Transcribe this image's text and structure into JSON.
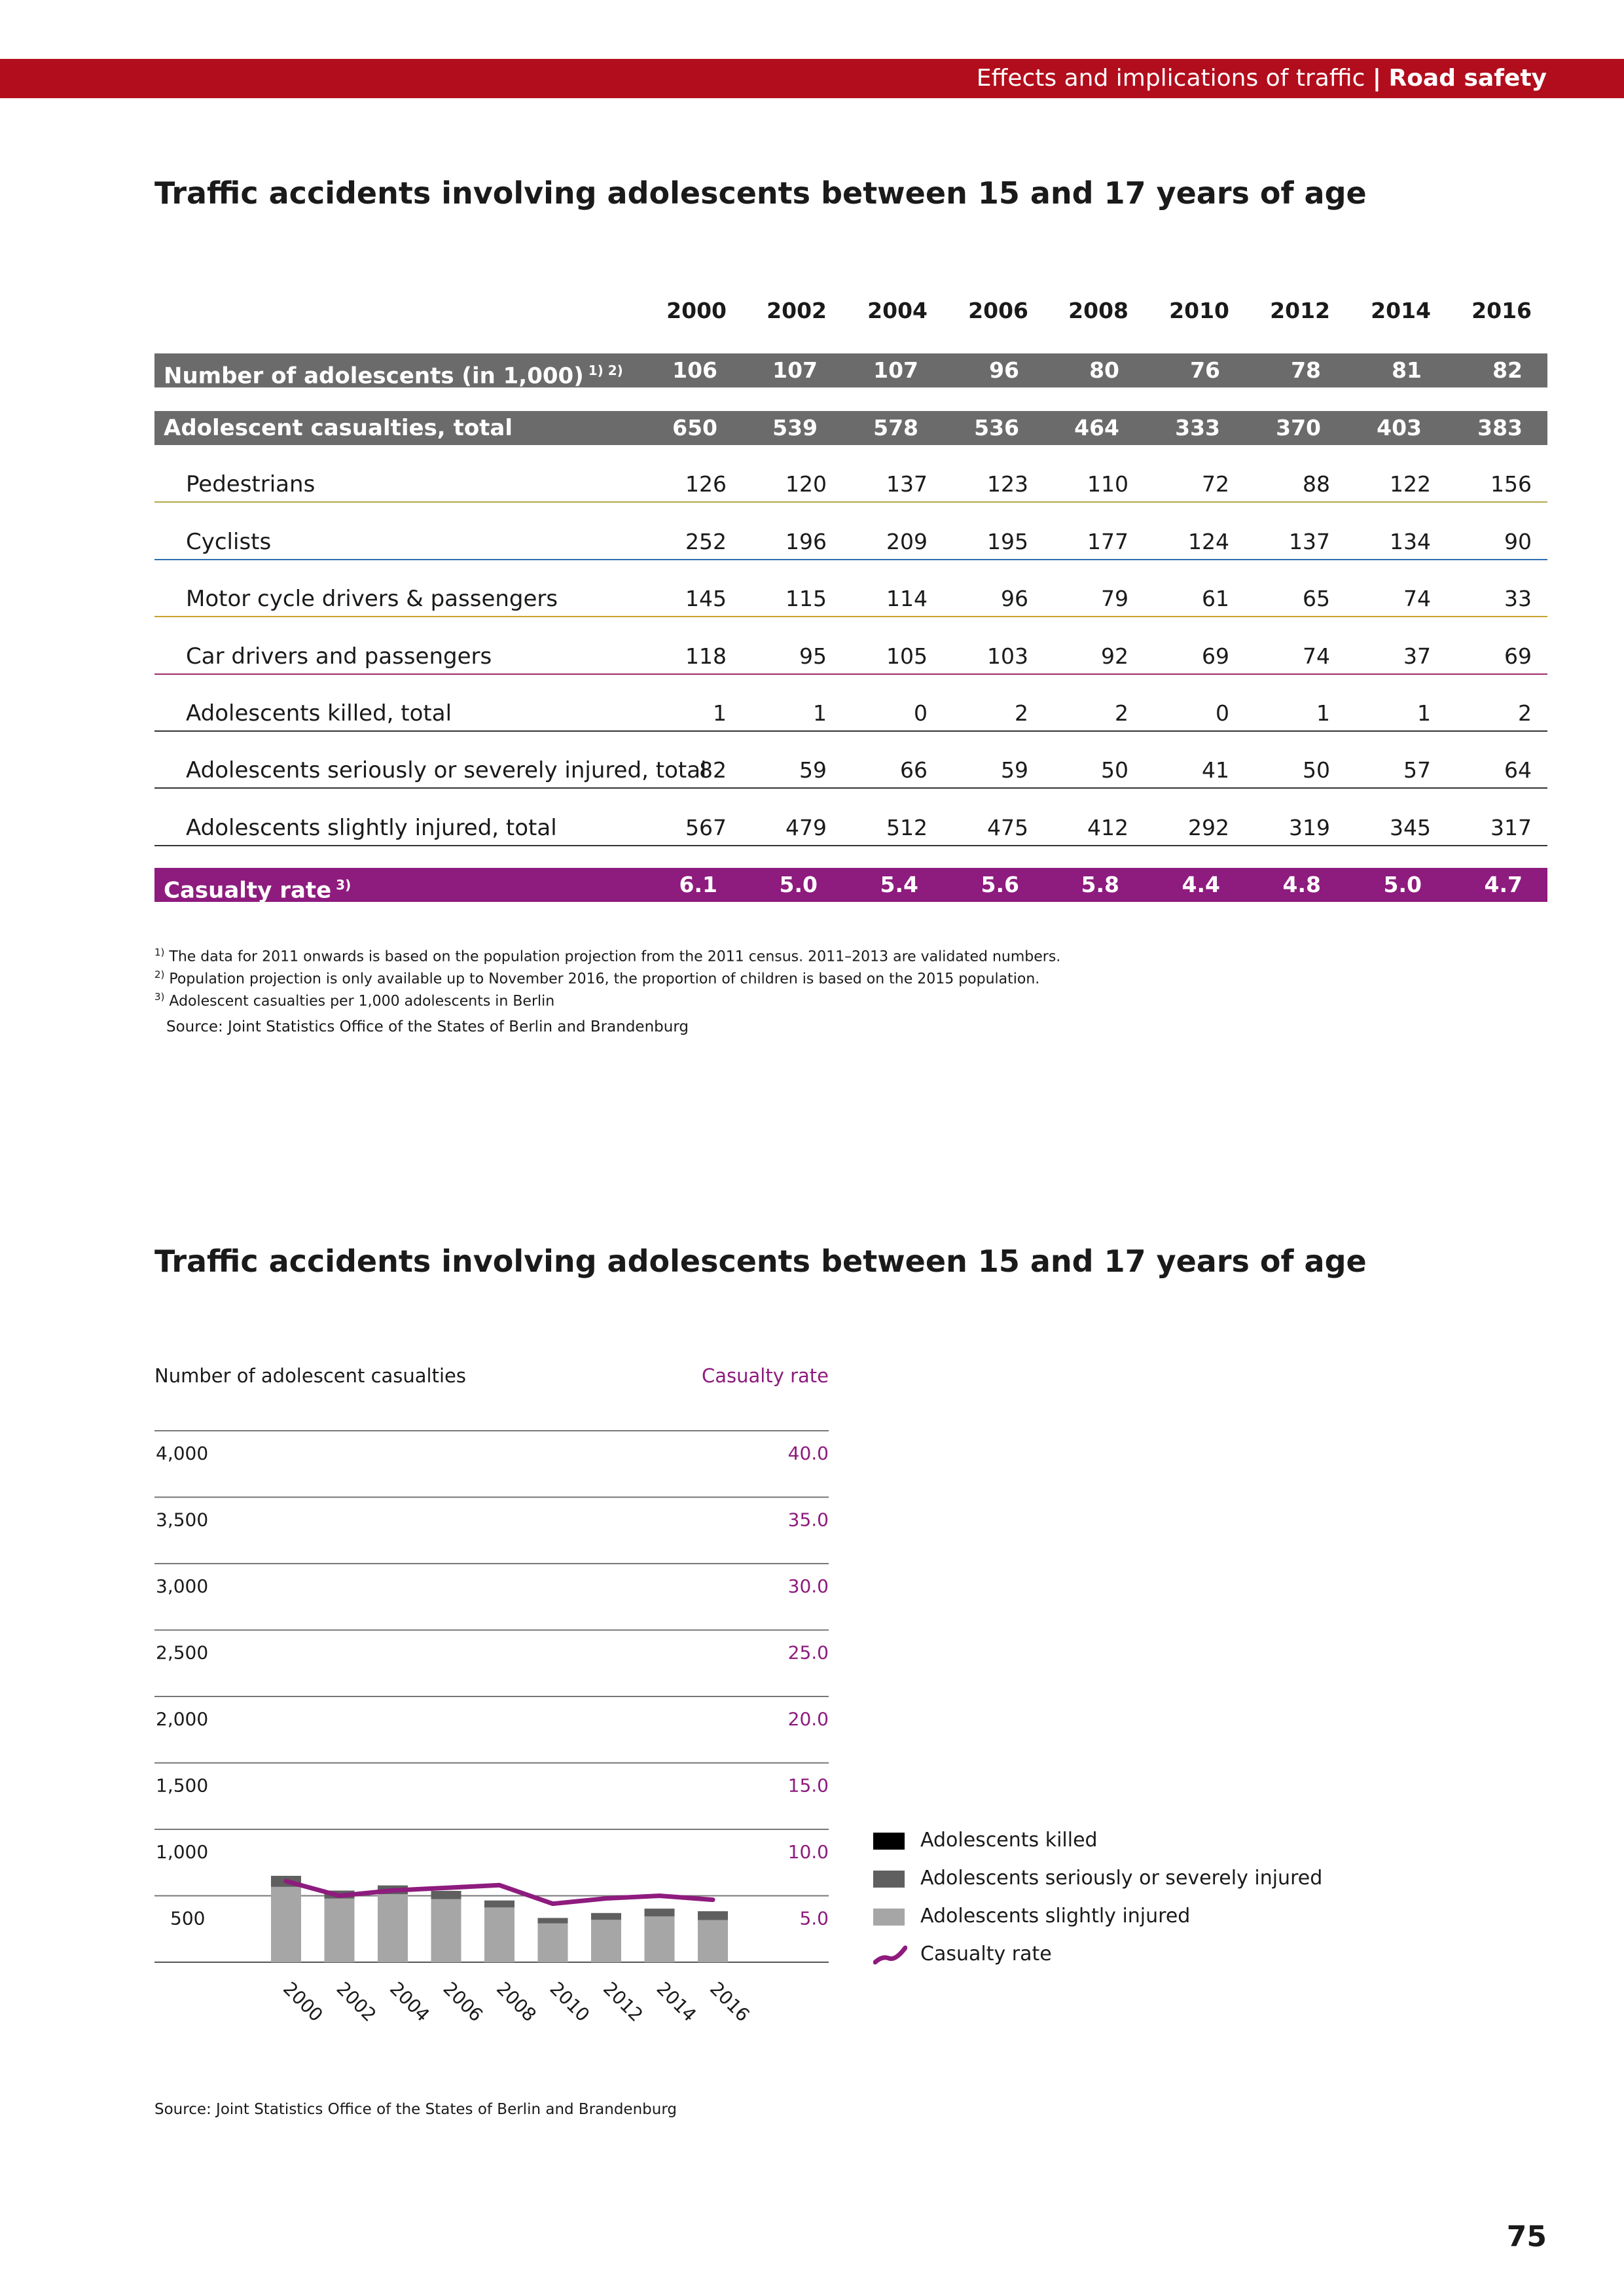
{
  "header": {
    "section": "Effects and implications of traffic",
    "separator": "|",
    "topic": "Road safety"
  },
  "table": {
    "title": "Traffic accidents involving adolescents between 15 and 17 years of age",
    "years": [
      "2000",
      "2002",
      "2004",
      "2006",
      "2008",
      "2010",
      "2012",
      "2014",
      "2016"
    ],
    "rows": [
      {
        "label": "Number of adolescents (in 1,000)",
        "sup": "1) 2)",
        "style": "shade",
        "values": [
          "106",
          "107",
          "107",
          "96",
          "80",
          "76",
          "78",
          "81",
          "82"
        ]
      },
      {
        "label": "Adolescent casualties, total",
        "sup": "",
        "style": "shade",
        "values": [
          "650",
          "539",
          "578",
          "536",
          "464",
          "333",
          "370",
          "403",
          "383"
        ]
      },
      {
        "label": "Pedestrians",
        "sup": "",
        "style": "plain",
        "line": "#b3a94a",
        "values": [
          "126",
          "120",
          "137",
          "123",
          "110",
          "72",
          "88",
          "122",
          "156"
        ]
      },
      {
        "label": "Cyclists",
        "sup": "",
        "style": "plain",
        "line": "#2e6db0",
        "values": [
          "252",
          "196",
          "209",
          "195",
          "177",
          "124",
          "137",
          "134",
          "90"
        ]
      },
      {
        "label": "Motor cycle drivers & passengers",
        "sup": "",
        "style": "plain",
        "line": "#c9a227",
        "values": [
          "145",
          "115",
          "114",
          "96",
          "79",
          "61",
          "65",
          "74",
          "33"
        ]
      },
      {
        "label": "Car drivers and passengers",
        "sup": "",
        "style": "plain",
        "line": "#9e2a6b",
        "values": [
          "118",
          "95",
          "105",
          "103",
          "92",
          "69",
          "74",
          "37",
          "69"
        ]
      },
      {
        "label": "Adolescents killed, total",
        "sup": "",
        "style": "plain",
        "line": "#333333",
        "values": [
          "1",
          "1",
          "0",
          "2",
          "2",
          "0",
          "1",
          "1",
          "2"
        ]
      },
      {
        "label": "Adolescents seriously or severely injured, total",
        "sup": "",
        "style": "plain",
        "line": "#333333",
        "values": [
          "82",
          "59",
          "66",
          "59",
          "50",
          "41",
          "50",
          "57",
          "64"
        ]
      },
      {
        "label": "Adolescents slightly injured, total",
        "sup": "",
        "style": "plain",
        "line": "#333333",
        "values": [
          "567",
          "479",
          "512",
          "475",
          "412",
          "292",
          "319",
          "345",
          "317"
        ]
      },
      {
        "label": "Casualty rate",
        "sup": "3)",
        "style": "purple",
        "values": [
          "6.1",
          "5.0",
          "5.4",
          "5.6",
          "5.8",
          "4.4",
          "4.8",
          "5.0",
          "4.7"
        ]
      }
    ],
    "footnotes": [
      {
        "num": "1)",
        "text": "The data for 2011 onwards is based on the population projection from the 2011 census. 2011–2013 are validated numbers."
      },
      {
        "num": "2)",
        "text": "Population projection is only available up to November 2016, the proportion of children is based on the 2015 population."
      },
      {
        "num": "3)",
        "text": "Adolescent casualties per 1,000 adolescents in Berlin"
      }
    ],
    "source": "Source: Joint Statistics Office of the States of Berlin and Brandenburg"
  },
  "chart_data": {
    "type": "bar",
    "title": "Traffic accidents involving adolescents between 15 and 17 years of age",
    "ylabel": "Number of adolescent casualties",
    "y2label": "Casualty rate",
    "ylim": [
      0,
      4000
    ],
    "y2lim": [
      0,
      40
    ],
    "yticks": [
      "500",
      "1,000",
      "1,500",
      "2,000",
      "2,500",
      "3,000",
      "3,500",
      "4,000"
    ],
    "y2ticks": [
      "5.0",
      "10.0",
      "15.0",
      "20.0",
      "25.0",
      "30.0",
      "35.0",
      "40.0"
    ],
    "categories": [
      "2000",
      "2002",
      "2004",
      "2006",
      "2008",
      "2010",
      "2012",
      "2014",
      "2016"
    ],
    "series": [
      {
        "name": "Adolescents killed",
        "kind": "bar",
        "color": "#000000",
        "values": [
          1,
          1,
          0,
          2,
          2,
          0,
          1,
          1,
          2
        ]
      },
      {
        "name": "Adolescents seriously or severely injured",
        "kind": "bar",
        "color": "#5f5f5f",
        "values": [
          82,
          59,
          66,
          59,
          50,
          41,
          50,
          57,
          64
        ]
      },
      {
        "name": "Adolescents slightly injured",
        "kind": "bar",
        "color": "#a6a6a6",
        "values": [
          567,
          479,
          512,
          475,
          412,
          292,
          319,
          345,
          317
        ]
      },
      {
        "name": "Casualty rate",
        "kind": "line",
        "color": "#8e1b7e",
        "values": [
          6.1,
          5.0,
          5.4,
          5.6,
          5.8,
          4.4,
          4.8,
          5.0,
          4.7
        ]
      }
    ],
    "legend": "right",
    "grid": true,
    "source": "Source: Joint Statistics Office of the States of Berlin and Brandenburg"
  },
  "page_number": "75"
}
